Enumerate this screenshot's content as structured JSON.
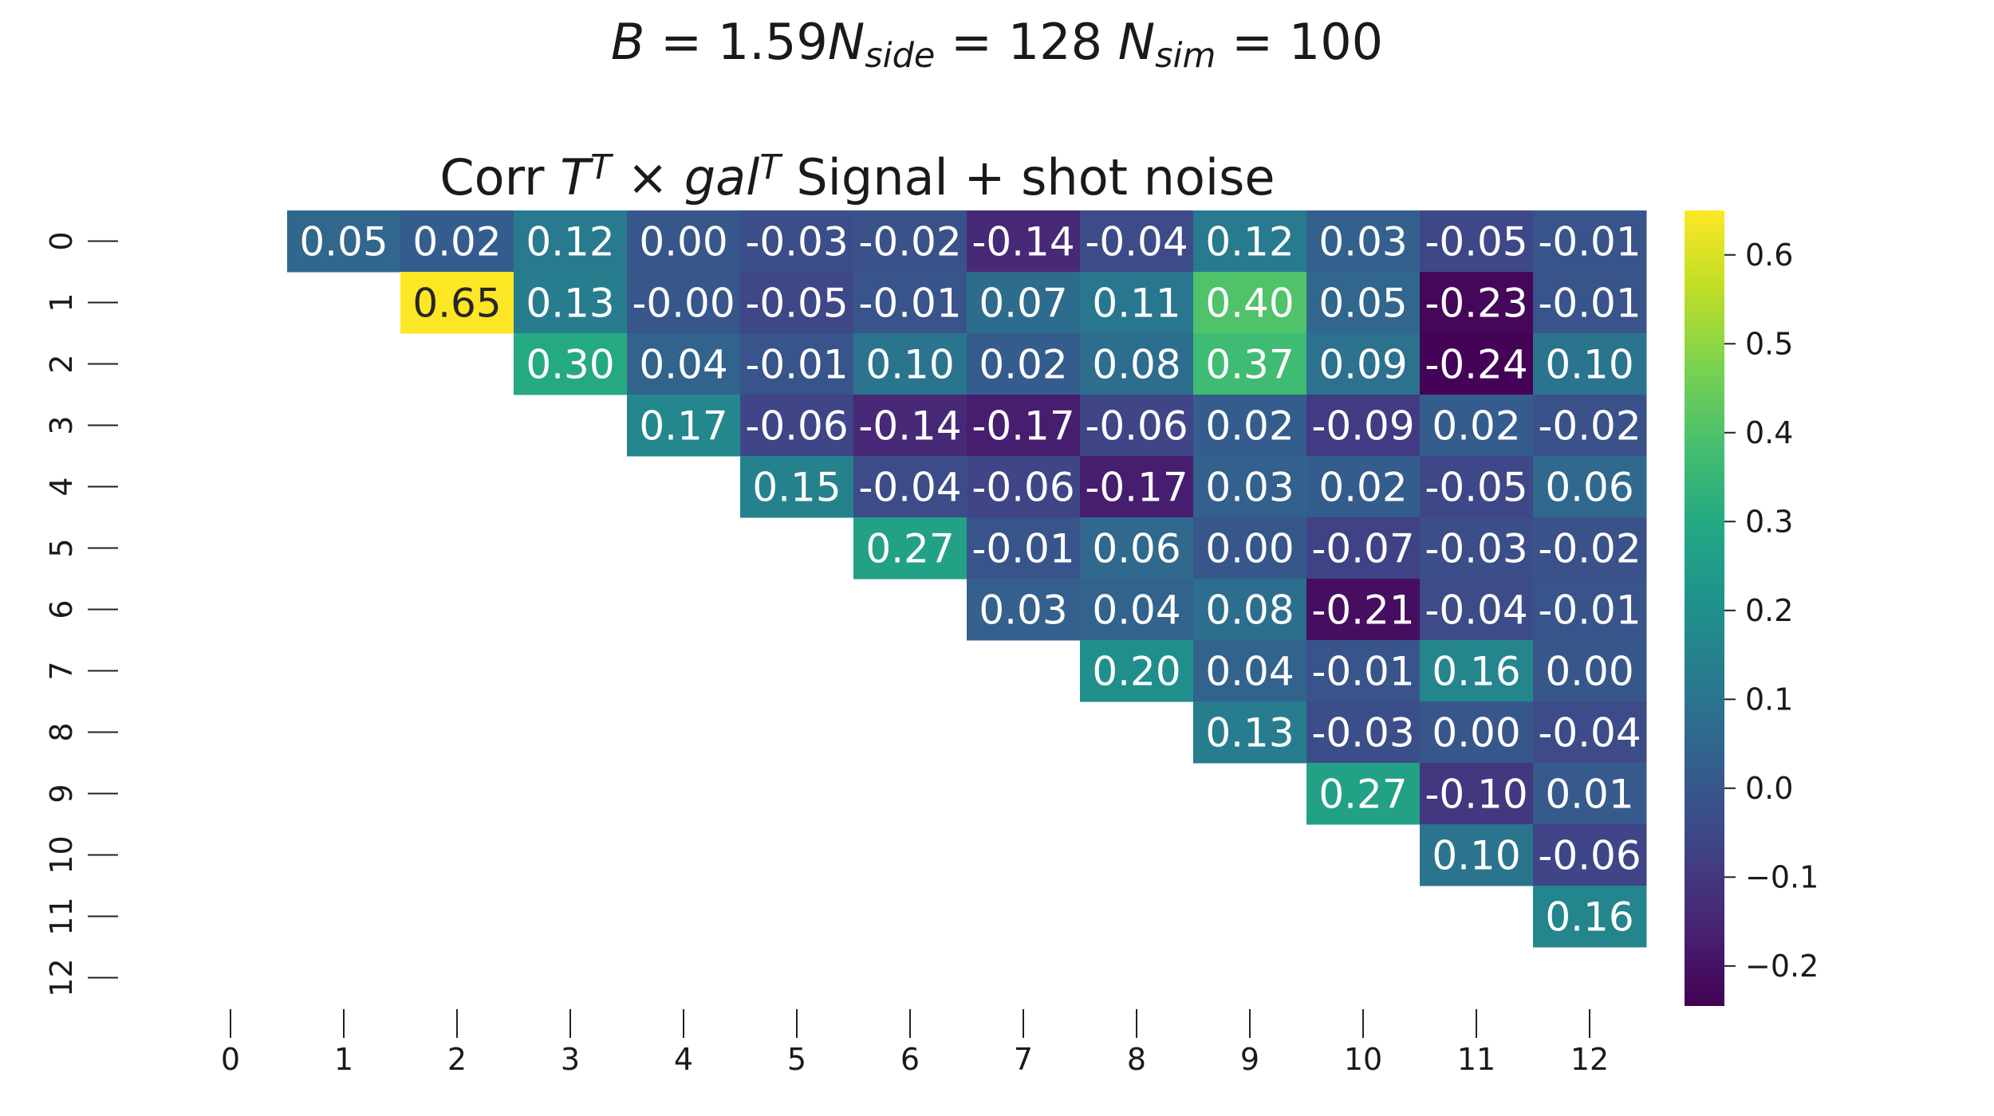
{
  "suptitle": {
    "parts": [
      {
        "text": "B",
        "style": "italic"
      },
      {
        "text": " = 1.59"
      },
      {
        "text": "N",
        "style": "italic"
      },
      {
        "text": "side",
        "style": "italic",
        "sub": true
      },
      {
        "text": " = 128 "
      },
      {
        "text": "N",
        "style": "italic"
      },
      {
        "text": "sim",
        "style": "italic",
        "sub": true
      },
      {
        "text": " = 100"
      }
    ]
  },
  "axes_title": {
    "parts": [
      {
        "text": "Corr "
      },
      {
        "text": "T",
        "style": "italic"
      },
      {
        "text": "T",
        "style": "italic",
        "sup": true
      },
      {
        "text": " × "
      },
      {
        "text": "gal",
        "style": "italic"
      },
      {
        "text": "T",
        "style": "italic",
        "sup": true
      },
      {
        "text": " Signal + shot noise"
      }
    ]
  },
  "chart_data": {
    "type": "heatmap",
    "colormap": "viridis",
    "x_ticks": [
      "0",
      "1",
      "2",
      "3",
      "4",
      "5",
      "6",
      "7",
      "8",
      "9",
      "10",
      "11",
      "12"
    ],
    "y_ticks": [
      "0",
      "1",
      "2",
      "3",
      "4",
      "5",
      "6",
      "7",
      "8",
      "9",
      "10",
      "11",
      "12"
    ],
    "vmin": -0.245,
    "vmax": 0.65,
    "colorbar_ticks": [
      {
        "value": 0.6,
        "label": "0.6"
      },
      {
        "value": 0.5,
        "label": "0.5"
      },
      {
        "value": 0.4,
        "label": "0.4"
      },
      {
        "value": 0.3,
        "label": "0.3"
      },
      {
        "value": 0.2,
        "label": "0.2"
      },
      {
        "value": 0.1,
        "label": "0.1"
      },
      {
        "value": 0.0,
        "label": "0.0"
      },
      {
        "value": -0.1,
        "label": "−0.1"
      },
      {
        "value": -0.2,
        "label": "−0.2"
      }
    ],
    "cells": [
      {
        "row": 0,
        "col": 1,
        "value": 0.05,
        "label": "0.05"
      },
      {
        "row": 0,
        "col": 2,
        "value": 0.02,
        "label": "0.02"
      },
      {
        "row": 0,
        "col": 3,
        "value": 0.12,
        "label": "0.12"
      },
      {
        "row": 0,
        "col": 4,
        "value": 0.0,
        "label": "0.00"
      },
      {
        "row": 0,
        "col": 5,
        "value": -0.03,
        "label": "-0.03"
      },
      {
        "row": 0,
        "col": 6,
        "value": -0.02,
        "label": "-0.02"
      },
      {
        "row": 0,
        "col": 7,
        "value": -0.14,
        "label": "-0.14"
      },
      {
        "row": 0,
        "col": 8,
        "value": -0.04,
        "label": "-0.04"
      },
      {
        "row": 0,
        "col": 9,
        "value": 0.12,
        "label": "0.12"
      },
      {
        "row": 0,
        "col": 10,
        "value": 0.03,
        "label": "0.03"
      },
      {
        "row": 0,
        "col": 11,
        "value": -0.05,
        "label": "-0.05"
      },
      {
        "row": 0,
        "col": 12,
        "value": -0.01,
        "label": "-0.01"
      },
      {
        "row": 1,
        "col": 2,
        "value": 0.65,
        "label": "0.65"
      },
      {
        "row": 1,
        "col": 3,
        "value": 0.13,
        "label": "0.13"
      },
      {
        "row": 1,
        "col": 4,
        "value": -0.0,
        "label": "-0.00"
      },
      {
        "row": 1,
        "col": 5,
        "value": -0.05,
        "label": "-0.05"
      },
      {
        "row": 1,
        "col": 6,
        "value": -0.01,
        "label": "-0.01"
      },
      {
        "row": 1,
        "col": 7,
        "value": 0.07,
        "label": "0.07"
      },
      {
        "row": 1,
        "col": 8,
        "value": 0.11,
        "label": "0.11"
      },
      {
        "row": 1,
        "col": 9,
        "value": 0.4,
        "label": "0.40"
      },
      {
        "row": 1,
        "col": 10,
        "value": 0.05,
        "label": "0.05"
      },
      {
        "row": 1,
        "col": 11,
        "value": -0.23,
        "label": "-0.23"
      },
      {
        "row": 1,
        "col": 12,
        "value": -0.01,
        "label": "-0.01"
      },
      {
        "row": 2,
        "col": 3,
        "value": 0.3,
        "label": "0.30"
      },
      {
        "row": 2,
        "col": 4,
        "value": 0.04,
        "label": "0.04"
      },
      {
        "row": 2,
        "col": 5,
        "value": -0.01,
        "label": "-0.01"
      },
      {
        "row": 2,
        "col": 6,
        "value": 0.1,
        "label": "0.10"
      },
      {
        "row": 2,
        "col": 7,
        "value": 0.02,
        "label": "0.02"
      },
      {
        "row": 2,
        "col": 8,
        "value": 0.08,
        "label": "0.08"
      },
      {
        "row": 2,
        "col": 9,
        "value": 0.37,
        "label": "0.37"
      },
      {
        "row": 2,
        "col": 10,
        "value": 0.09,
        "label": "0.09"
      },
      {
        "row": 2,
        "col": 11,
        "value": -0.24,
        "label": "-0.24"
      },
      {
        "row": 2,
        "col": 12,
        "value": 0.1,
        "label": "0.10"
      },
      {
        "row": 3,
        "col": 4,
        "value": 0.17,
        "label": "0.17"
      },
      {
        "row": 3,
        "col": 5,
        "value": -0.06,
        "label": "-0.06"
      },
      {
        "row": 3,
        "col": 6,
        "value": -0.14,
        "label": "-0.14"
      },
      {
        "row": 3,
        "col": 7,
        "value": -0.17,
        "label": "-0.17"
      },
      {
        "row": 3,
        "col": 8,
        "value": -0.06,
        "label": "-0.06"
      },
      {
        "row": 3,
        "col": 9,
        "value": 0.02,
        "label": "0.02"
      },
      {
        "row": 3,
        "col": 10,
        "value": -0.09,
        "label": "-0.09"
      },
      {
        "row": 3,
        "col": 11,
        "value": 0.02,
        "label": "0.02"
      },
      {
        "row": 3,
        "col": 12,
        "value": -0.02,
        "label": "-0.02"
      },
      {
        "row": 4,
        "col": 5,
        "value": 0.15,
        "label": "0.15"
      },
      {
        "row": 4,
        "col": 6,
        "value": -0.04,
        "label": "-0.04"
      },
      {
        "row": 4,
        "col": 7,
        "value": -0.06,
        "label": "-0.06"
      },
      {
        "row": 4,
        "col": 8,
        "value": -0.17,
        "label": "-0.17"
      },
      {
        "row": 4,
        "col": 9,
        "value": 0.03,
        "label": "0.03"
      },
      {
        "row": 4,
        "col": 10,
        "value": 0.02,
        "label": "0.02"
      },
      {
        "row": 4,
        "col": 11,
        "value": -0.05,
        "label": "-0.05"
      },
      {
        "row": 4,
        "col": 12,
        "value": 0.06,
        "label": "0.06"
      },
      {
        "row": 5,
        "col": 6,
        "value": 0.27,
        "label": "0.27"
      },
      {
        "row": 5,
        "col": 7,
        "value": -0.01,
        "label": "-0.01"
      },
      {
        "row": 5,
        "col": 8,
        "value": 0.06,
        "label": "0.06"
      },
      {
        "row": 5,
        "col": 9,
        "value": 0.0,
        "label": "0.00"
      },
      {
        "row": 5,
        "col": 10,
        "value": -0.07,
        "label": "-0.07"
      },
      {
        "row": 5,
        "col": 11,
        "value": -0.03,
        "label": "-0.03"
      },
      {
        "row": 5,
        "col": 12,
        "value": -0.02,
        "label": "-0.02"
      },
      {
        "row": 6,
        "col": 7,
        "value": 0.03,
        "label": "0.03"
      },
      {
        "row": 6,
        "col": 8,
        "value": 0.04,
        "label": "0.04"
      },
      {
        "row": 6,
        "col": 9,
        "value": 0.08,
        "label": "0.08"
      },
      {
        "row": 6,
        "col": 10,
        "value": -0.21,
        "label": "-0.21"
      },
      {
        "row": 6,
        "col": 11,
        "value": -0.04,
        "label": "-0.04"
      },
      {
        "row": 6,
        "col": 12,
        "value": -0.01,
        "label": "-0.01"
      },
      {
        "row": 7,
        "col": 8,
        "value": 0.2,
        "label": "0.20"
      },
      {
        "row": 7,
        "col": 9,
        "value": 0.04,
        "label": "0.04"
      },
      {
        "row": 7,
        "col": 10,
        "value": -0.01,
        "label": "-0.01"
      },
      {
        "row": 7,
        "col": 11,
        "value": 0.16,
        "label": "0.16"
      },
      {
        "row": 7,
        "col": 12,
        "value": 0.0,
        "label": "0.00"
      },
      {
        "row": 8,
        "col": 9,
        "value": 0.13,
        "label": "0.13"
      },
      {
        "row": 8,
        "col": 10,
        "value": -0.03,
        "label": "-0.03"
      },
      {
        "row": 8,
        "col": 11,
        "value": 0.0,
        "label": "0.00"
      },
      {
        "row": 8,
        "col": 12,
        "value": -0.04,
        "label": "-0.04"
      },
      {
        "row": 9,
        "col": 10,
        "value": 0.27,
        "label": "0.27"
      },
      {
        "row": 9,
        "col": 11,
        "value": -0.1,
        "label": "-0.10"
      },
      {
        "row": 9,
        "col": 12,
        "value": 0.01,
        "label": "0.01"
      },
      {
        "row": 10,
        "col": 11,
        "value": 0.1,
        "label": "0.10"
      },
      {
        "row": 10,
        "col": 12,
        "value": -0.06,
        "label": "-0.06"
      },
      {
        "row": 11,
        "col": 12,
        "value": 0.16,
        "label": "0.16"
      }
    ]
  }
}
